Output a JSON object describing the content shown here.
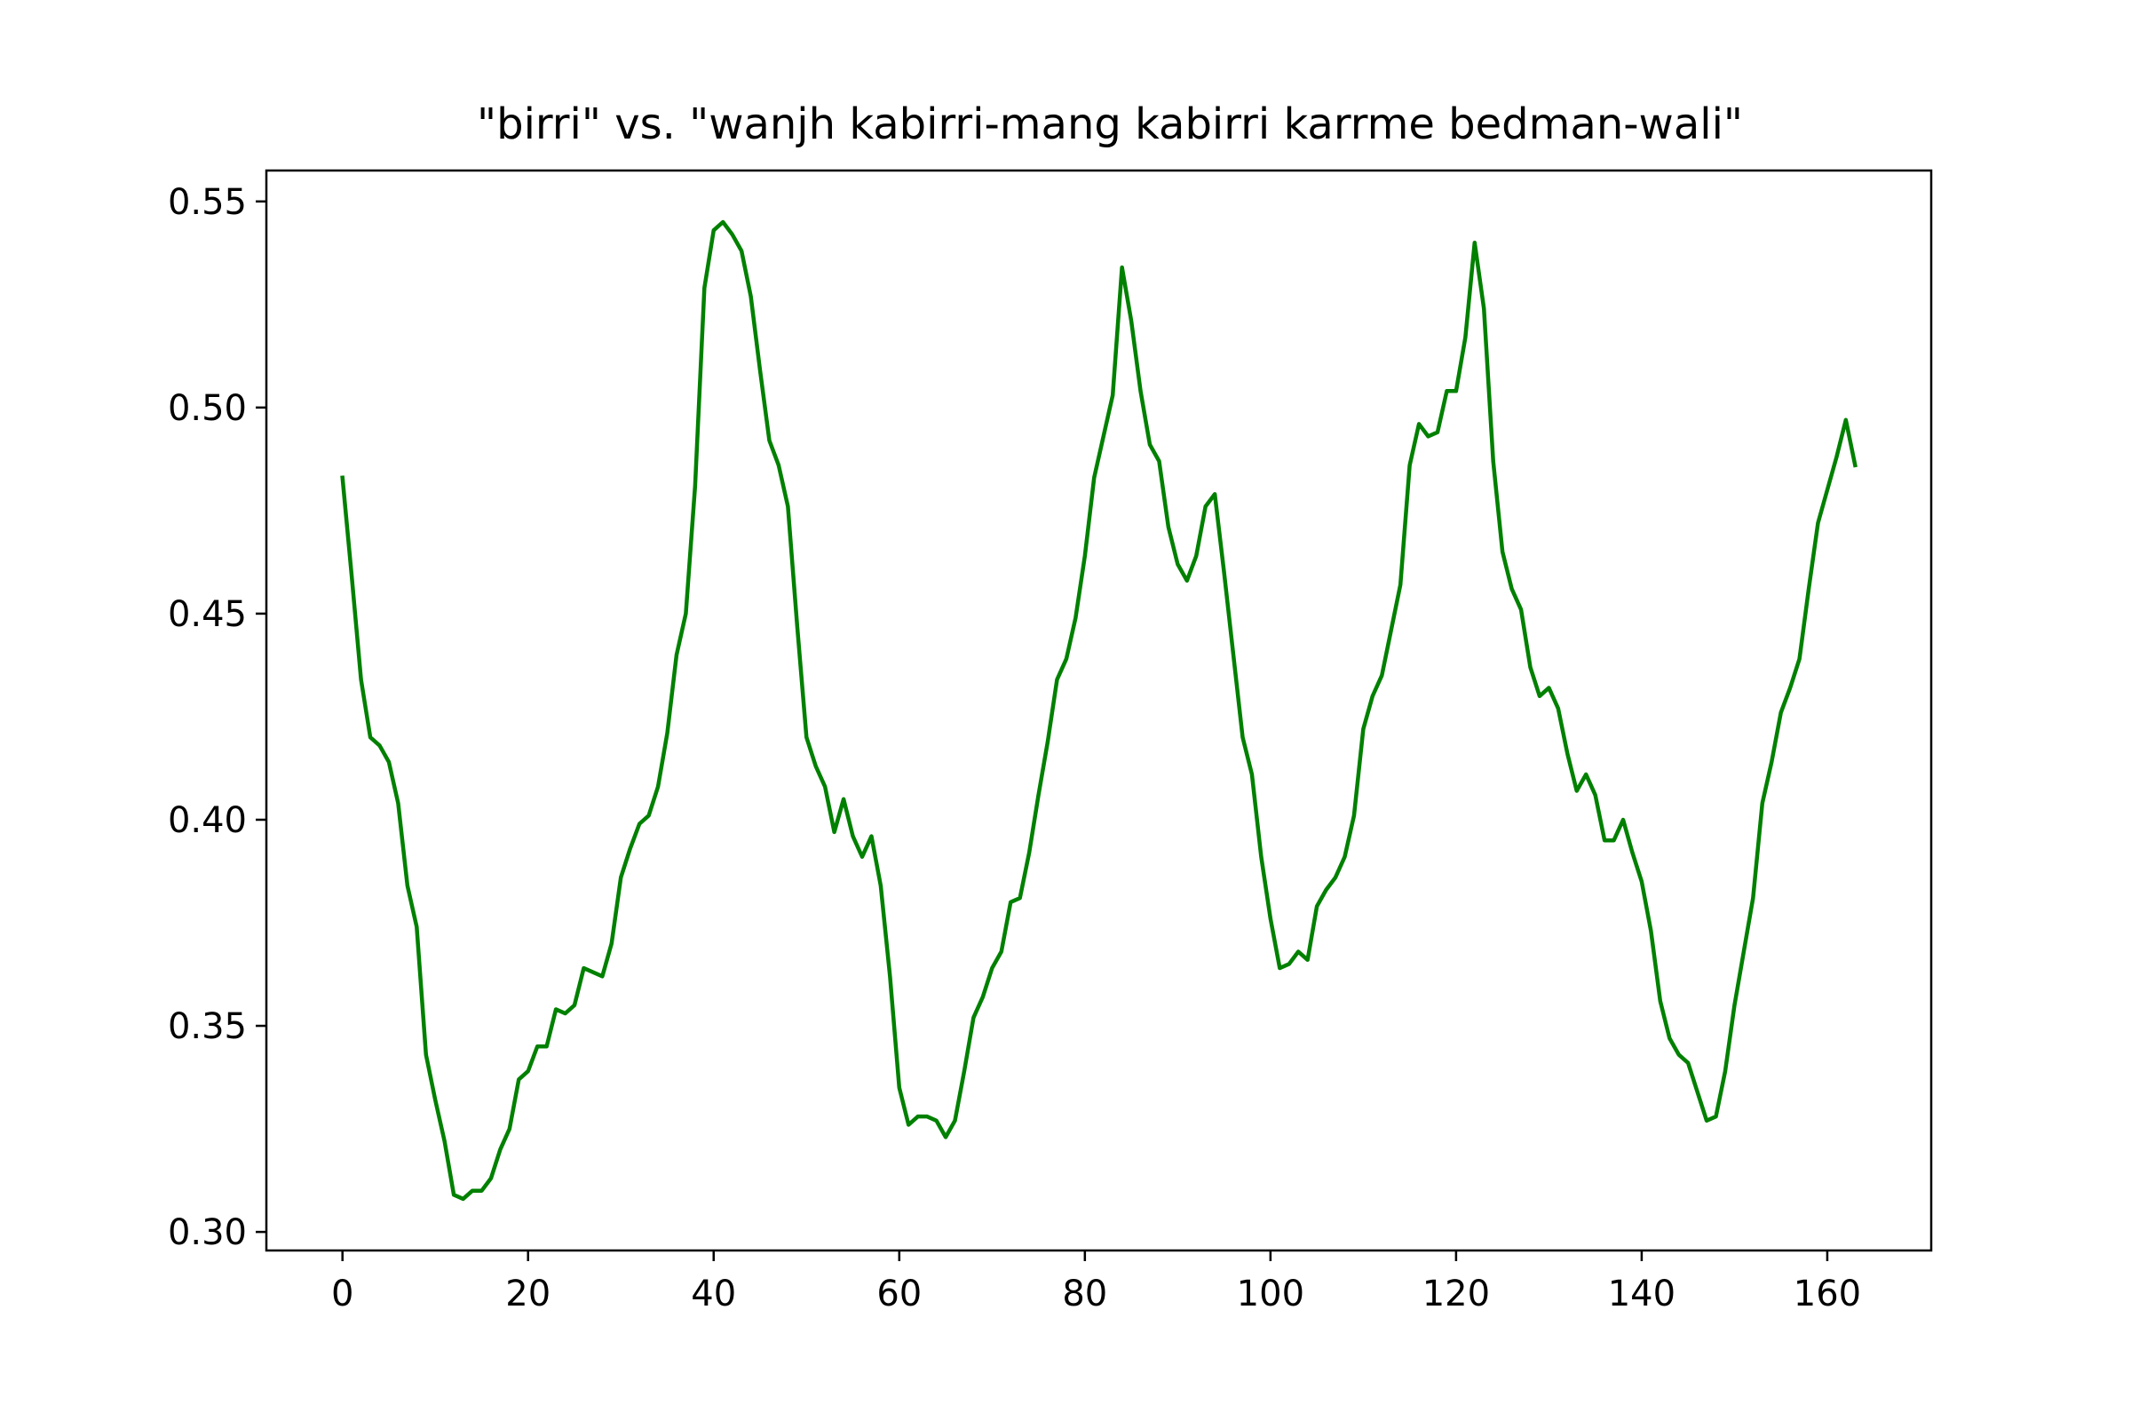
{
  "chart_data": {
    "type": "line",
    "title": "\"birri\" vs. \"wanjh kabirri-mang kabirri karrme bedman-wali\"",
    "xlabel": "",
    "ylabel": "",
    "xlim": [
      -8.2,
      171.2
    ],
    "ylim": [
      0.2955,
      0.5575
    ],
    "xticks": [
      0,
      20,
      40,
      60,
      80,
      100,
      120,
      140,
      160
    ],
    "xtick_labels": [
      "0",
      "20",
      "40",
      "60",
      "80",
      "100",
      "120",
      "140",
      "160"
    ],
    "yticks": [
      0.3,
      0.35,
      0.4,
      0.45,
      0.5,
      0.55
    ],
    "ytick_labels": [
      "0.30",
      "0.35",
      "0.40",
      "0.45",
      "0.50",
      "0.55"
    ],
    "grid": false,
    "legend": "none",
    "series": [
      {
        "color": "#008000",
        "values": [
          0.483,
          0.459,
          0.434,
          0.42,
          0.418,
          0.414,
          0.404,
          0.384,
          0.374,
          0.343,
          0.332,
          0.322,
          0.309,
          0.308,
          0.31,
          0.31,
          0.313,
          0.32,
          0.325,
          0.337,
          0.339,
          0.345,
          0.345,
          0.354,
          0.353,
          0.355,
          0.364,
          0.363,
          0.362,
          0.37,
          0.386,
          0.393,
          0.399,
          0.401,
          0.408,
          0.421,
          0.44,
          0.45,
          0.481,
          0.529,
          0.543,
          0.545,
          0.542,
          0.538,
          0.527,
          0.509,
          0.492,
          0.486,
          0.476,
          0.447,
          0.42,
          0.413,
          0.408,
          0.397,
          0.405,
          0.396,
          0.391,
          0.396,
          0.384,
          0.362,
          0.335,
          0.326,
          0.328,
          0.328,
          0.327,
          0.323,
          0.327,
          0.339,
          0.352,
          0.357,
          0.364,
          0.368,
          0.38,
          0.381,
          0.392,
          0.406,
          0.419,
          0.434,
          0.439,
          0.449,
          0.464,
          0.483,
          0.493,
          0.503,
          0.534,
          0.521,
          0.504,
          0.491,
          0.487,
          0.471,
          0.462,
          0.458,
          0.464,
          0.476,
          0.479,
          0.46,
          0.44,
          0.42,
          0.411,
          0.391,
          0.376,
          0.364,
          0.365,
          0.368,
          0.366,
          0.379,
          0.383,
          0.386,
          0.391,
          0.401,
          0.422,
          0.43,
          0.435,
          0.446,
          0.457,
          0.486,
          0.496,
          0.493,
          0.494,
          0.504,
          0.504,
          0.517,
          0.54,
          0.524,
          0.487,
          0.465,
          0.456,
          0.451,
          0.437,
          0.43,
          0.432,
          0.427,
          0.416,
          0.407,
          0.411,
          0.406,
          0.395,
          0.395,
          0.4,
          0.392,
          0.385,
          0.373,
          0.356,
          0.347,
          0.343,
          0.341,
          0.334,
          0.327,
          0.328,
          0.339,
          0.355,
          0.368,
          0.381,
          0.404,
          0.414,
          0.426,
          0.432,
          0.439,
          0.456,
          0.472,
          0.48,
          0.488,
          0.497,
          0.486
        ]
      }
    ]
  }
}
